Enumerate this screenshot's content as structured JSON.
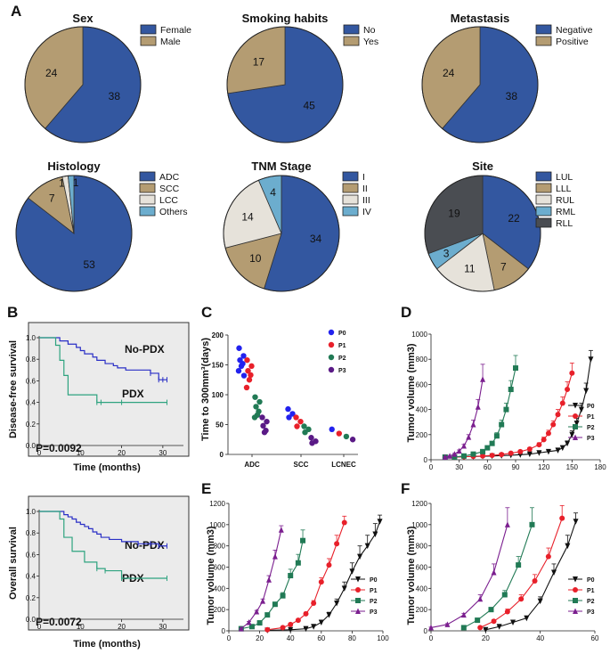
{
  "panel_letters": {
    "a": "A",
    "b": "B",
    "c": "C",
    "d": "D",
    "e": "E",
    "f": "F"
  },
  "colors": {
    "blue": "#3357a0",
    "tan": "#b49c72",
    "cream": "#e6e2da",
    "light_blue": "#6cadce",
    "dark_gray": "#4a4d52",
    "km_no_pdx": "#2a2fc6",
    "km_pdx": "#2ea37f",
    "km_bg": "#ebebeb",
    "p0": "#111111",
    "p1": "#e8202a",
    "p2": "#217a55",
    "p3": "#7b1f8f",
    "c_p0": "#2222ee"
  },
  "chart_data": [
    {
      "type": "pie",
      "id": "sex",
      "title": "Sex",
      "slices": [
        {
          "label": "Female",
          "value": 38,
          "color": "#3357a0"
        },
        {
          "label": "Male",
          "value": 24,
          "color": "#b49c72"
        }
      ]
    },
    {
      "type": "pie",
      "id": "smoking",
      "title": "Smoking habits",
      "slices": [
        {
          "label": "No",
          "value": 45,
          "color": "#3357a0"
        },
        {
          "label": "Yes",
          "value": 17,
          "color": "#b49c72"
        }
      ]
    },
    {
      "type": "pie",
      "id": "metastasis",
      "title": "Metastasis",
      "slices": [
        {
          "label": "Negative",
          "value": 38,
          "color": "#3357a0"
        },
        {
          "label": "Positive",
          "value": 24,
          "color": "#b49c72"
        }
      ]
    },
    {
      "type": "pie",
      "id": "histology",
      "title": "Histology",
      "slices": [
        {
          "label": "ADC",
          "value": 53,
          "color": "#3357a0"
        },
        {
          "label": "SCC",
          "value": 7,
          "color": "#b49c72"
        },
        {
          "label": "LCC",
          "value": 1,
          "color": "#e6e2da"
        },
        {
          "label": "Others",
          "value": 1,
          "color": "#6cadce"
        }
      ]
    },
    {
      "type": "pie",
      "id": "tnm",
      "title": "TNM Stage",
      "slices": [
        {
          "label": "I",
          "value": 34,
          "color": "#3357a0"
        },
        {
          "label": "II",
          "value": 10,
          "color": "#b49c72"
        },
        {
          "label": "III",
          "value": 14,
          "color": "#e6e2da"
        },
        {
          "label": "IV",
          "value": 4,
          "color": "#6cadce"
        }
      ]
    },
    {
      "type": "pie",
      "id": "site",
      "title": "Site",
      "slices": [
        {
          "label": "LUL",
          "value": 22,
          "color": "#3357a0"
        },
        {
          "label": "LLL",
          "value": 7,
          "color": "#b49c72"
        },
        {
          "label": "RUL",
          "value": 11,
          "color": "#e6e2da"
        },
        {
          "label": "RML",
          "value": 3,
          "color": "#6cadce"
        },
        {
          "label": "RLL",
          "value": 19,
          "color": "#4a4d52"
        }
      ]
    },
    {
      "type": "line",
      "id": "dfs",
      "subtype": "kaplan-meier",
      "ylabel": "Disease-free survival",
      "xlabel": "Time (months)",
      "xlim": [
        0,
        35
      ],
      "ylim": [
        0,
        1
      ],
      "xticks": [
        0,
        10,
        20,
        30
      ],
      "yticks": [
        0.0,
        0.2,
        0.4,
        0.6,
        0.8,
        1.0
      ],
      "pvalue_label": "P=0.0092",
      "series": [
        {
          "name": "No-PDX",
          "x": [
            0,
            3.5,
            5,
            7,
            8,
            9,
            10,
            11,
            13,
            14,
            15,
            16,
            18,
            19,
            20,
            21,
            24,
            27,
            29,
            30,
            31
          ],
          "y": [
            1.0,
            1.0,
            0.97,
            0.94,
            0.94,
            0.91,
            0.88,
            0.85,
            0.82,
            0.79,
            0.79,
            0.76,
            0.74,
            0.72,
            0.72,
            0.7,
            0.7,
            0.67,
            0.61,
            0.61,
            0.61
          ]
        },
        {
          "name": "PDX",
          "x": [
            0,
            2,
            4,
            5,
            6,
            7,
            11,
            14,
            15,
            20,
            31
          ],
          "y": [
            1.0,
            1.0,
            0.93,
            0.79,
            0.65,
            0.47,
            0.47,
            0.4,
            0.4,
            0.4,
            0.4
          ]
        }
      ]
    },
    {
      "type": "line",
      "id": "os",
      "subtype": "kaplan-meier",
      "ylabel": "Overall survival",
      "xlabel": "Time (months)",
      "xlim": [
        0,
        35
      ],
      "ylim": [
        0,
        1
      ],
      "xticks": [
        0,
        10,
        20,
        30
      ],
      "yticks": [
        0.0,
        0.2,
        0.4,
        0.6,
        0.8,
        1.0
      ],
      "pvalue_label": "P=0.0072",
      "series": [
        {
          "name": "No-PDX",
          "x": [
            0,
            5,
            6,
            7,
            8,
            9,
            10,
            11,
            12,
            13,
            14,
            15,
            17,
            20,
            22,
            24,
            27,
            29,
            31
          ],
          "y": [
            1.0,
            1.0,
            0.97,
            0.95,
            0.93,
            0.9,
            0.88,
            0.86,
            0.84,
            0.81,
            0.79,
            0.76,
            0.74,
            0.72,
            0.72,
            0.7,
            0.7,
            0.68,
            0.68
          ]
        },
        {
          "name": "PDX",
          "x": [
            0,
            4,
            5,
            6,
            8,
            11,
            12,
            14,
            16,
            20,
            31
          ],
          "y": [
            1.0,
            1.0,
            0.93,
            0.76,
            0.63,
            0.53,
            0.53,
            0.47,
            0.45,
            0.38,
            0.38
          ]
        }
      ]
    },
    {
      "type": "scatter",
      "id": "time_to_300",
      "ylabel": "Time to 300mm³(days)",
      "categories": [
        "ADC",
        "SCC",
        "LCNEC"
      ],
      "ylim": [
        0,
        200
      ],
      "yticks": [
        0,
        50,
        100,
        150,
        200
      ],
      "series": [
        {
          "name": "P0",
          "color": "#2222ee",
          "groups": [
            [
              178,
              165,
              158,
              152,
              148,
              140,
              132
            ],
            [
              76,
              68,
              62
            ],
            [
              42
            ]
          ]
        },
        {
          "name": "P1",
          "color": "#e8202a",
          "groups": [
            [
              158,
              148,
              140,
              133,
              125,
              112
            ],
            [
              62,
              55,
              47
            ],
            [
              35
            ]
          ]
        },
        {
          "name": "P2",
          "color": "#217a55",
          "groups": [
            [
              96,
              88,
              80,
              72,
              66,
              62
            ],
            [
              47,
              42,
              37
            ],
            [
              30
            ]
          ]
        },
        {
          "name": "P3",
          "color": "#5a1a86",
          "groups": [
            [
              62,
              55,
              48,
              40,
              37
            ],
            [
              28,
              22,
              19
            ],
            [
              25
            ]
          ]
        }
      ]
    },
    {
      "type": "line",
      "id": "growth_d",
      "ylabel": "Tumor volume (mm3)",
      "xlim": [
        0,
        180
      ],
      "ylim": [
        0,
        1000
      ],
      "xticks": [
        0,
        30,
        60,
        90,
        120,
        150,
        180
      ],
      "yticks": [
        0,
        200,
        400,
        600,
        800,
        1000
      ],
      "series": [
        {
          "name": "P0",
          "marker": "triangle-down",
          "color": "#111111",
          "x": [
            15,
            25,
            35,
            45,
            55,
            65,
            75,
            85,
            95,
            105,
            115,
            125,
            135,
            140,
            145,
            150,
            155,
            160,
            165,
            170
          ],
          "y": [
            20,
            22,
            24,
            26,
            28,
            30,
            33,
            36,
            40,
            45,
            55,
            65,
            75,
            95,
            130,
            200,
            290,
            400,
            550,
            800
          ],
          "err": [
            5,
            5,
            5,
            5,
            5,
            5,
            6,
            6,
            6,
            7,
            8,
            10,
            12,
            15,
            20,
            30,
            40,
            50,
            60,
            70
          ]
        },
        {
          "name": "P1",
          "marker": "circle",
          "color": "#e8202a",
          "x": [
            15,
            25,
            35,
            45,
            55,
            65,
            75,
            85,
            95,
            105,
            115,
            120,
            125,
            130,
            135,
            140,
            145,
            150
          ],
          "y": [
            20,
            22,
            24,
            27,
            30,
            35,
            42,
            52,
            65,
            85,
            120,
            160,
            210,
            280,
            360,
            450,
            560,
            690
          ],
          "err": [
            5,
            5,
            5,
            5,
            5,
            6,
            7,
            8,
            10,
            12,
            15,
            20,
            25,
            30,
            40,
            50,
            60,
            80
          ]
        },
        {
          "name": "P2",
          "marker": "square",
          "color": "#217a55",
          "x": [
            15,
            25,
            35,
            45,
            55,
            60,
            65,
            70,
            75,
            80,
            85,
            90
          ],
          "y": [
            20,
            22,
            30,
            45,
            65,
            95,
            130,
            190,
            280,
            400,
            560,
            730
          ],
          "err": [
            5,
            5,
            6,
            8,
            10,
            12,
            15,
            25,
            35,
            50,
            70,
            100
          ]
        },
        {
          "name": "P3",
          "marker": "triangle-up",
          "color": "#7b1f8f",
          "x": [
            15,
            20,
            25,
            30,
            35,
            40,
            45,
            50,
            55
          ],
          "y": [
            20,
            30,
            45,
            70,
            110,
            180,
            280,
            420,
            640
          ],
          "err": [
            5,
            5,
            6,
            8,
            12,
            20,
            35,
            60,
            120
          ]
        }
      ]
    },
    {
      "type": "line",
      "id": "growth_e",
      "ylabel": "Tumor volume (mm3)",
      "xlim": [
        0,
        100
      ],
      "ylim": [
        0,
        1200
      ],
      "xticks": [
        0,
        20,
        40,
        60,
        80,
        100
      ],
      "yticks": [
        0,
        200,
        400,
        600,
        800,
        1000,
        1200
      ],
      "series": [
        {
          "name": "P0",
          "marker": "triangle-down",
          "color": "#111111",
          "x": [
            25,
            40,
            50,
            55,
            60,
            65,
            70,
            75,
            80,
            85,
            90,
            95,
            98
          ],
          "y": [
            5,
            10,
            20,
            40,
            80,
            150,
            260,
            400,
            560,
            700,
            800,
            910,
            1030
          ],
          "err": [
            5,
            5,
            8,
            10,
            15,
            25,
            40,
            60,
            80,
            100,
            100,
            100,
            60
          ]
        },
        {
          "name": "P1",
          "marker": "circle",
          "color": "#e8202a",
          "x": [
            25,
            35,
            40,
            45,
            50,
            55,
            60,
            65,
            70,
            75
          ],
          "y": [
            10,
            30,
            60,
            100,
            160,
            260,
            460,
            620,
            820,
            1020
          ],
          "err": [
            5,
            6,
            8,
            10,
            15,
            25,
            40,
            60,
            80,
            60
          ]
        },
        {
          "name": "P2",
          "marker": "square",
          "color": "#217a55",
          "x": [
            8,
            15,
            20,
            25,
            30,
            35,
            40,
            45,
            48
          ],
          "y": [
            20,
            40,
            75,
            150,
            250,
            330,
            520,
            640,
            850
          ],
          "err": [
            5,
            6,
            8,
            12,
            20,
            30,
            60,
            80,
            100
          ]
        },
        {
          "name": "P3",
          "marker": "triangle-up",
          "color": "#7b1f8f",
          "x": [
            8,
            13,
            18,
            22,
            26,
            30,
            34
          ],
          "y": [
            20,
            80,
            180,
            280,
            480,
            700,
            950
          ],
          "err": [
            5,
            8,
            12,
            20,
            40,
            60,
            40
          ]
        }
      ]
    },
    {
      "type": "line",
      "id": "growth_f",
      "ylabel": "Tumor volume (mm3)",
      "xlim": [
        0,
        60
      ],
      "ylim": [
        0,
        1200
      ],
      "xticks": [
        0,
        20,
        40,
        60
      ],
      "yticks": [
        0,
        200,
        400,
        600,
        800,
        1000,
        1200
      ],
      "series": [
        {
          "name": "P0",
          "marker": "triangle-down",
          "color": "#111111",
          "x": [
            20,
            25,
            30,
            35,
            40,
            45,
            50,
            53
          ],
          "y": [
            10,
            40,
            80,
            120,
            280,
            550,
            800,
            1030
          ],
          "err": [
            5,
            8,
            15,
            20,
            40,
            80,
            100,
            80
          ]
        },
        {
          "name": "P1",
          "marker": "circle",
          "color": "#e8202a",
          "x": [
            18,
            23,
            28,
            33,
            38,
            43,
            48
          ],
          "y": [
            30,
            90,
            180,
            300,
            470,
            700,
            1060
          ],
          "err": [
            5,
            15,
            25,
            40,
            60,
            80,
            120
          ]
        },
        {
          "name": "P2",
          "marker": "square",
          "color": "#217a55",
          "x": [
            12,
            17,
            22,
            27,
            32,
            37
          ],
          "y": [
            30,
            100,
            200,
            340,
            620,
            1000
          ],
          "err": [
            5,
            12,
            20,
            40,
            80,
            160
          ]
        },
        {
          "name": "P3",
          "marker": "triangle-up",
          "color": "#7b1f8f",
          "x": [
            0,
            6,
            12,
            18,
            23,
            28
          ],
          "y": [
            30,
            60,
            150,
            300,
            550,
            1000
          ],
          "err": [
            5,
            8,
            15,
            40,
            80,
            160
          ]
        }
      ]
    }
  ]
}
